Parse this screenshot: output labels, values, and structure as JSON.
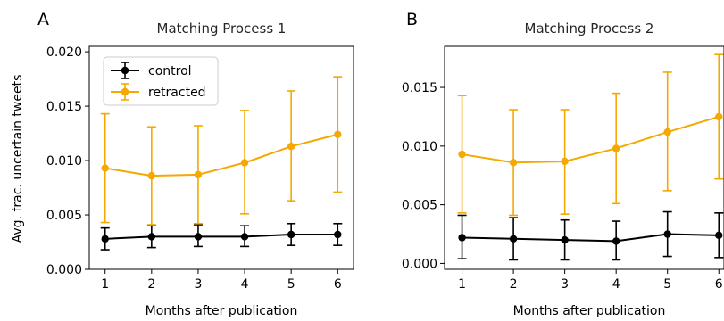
{
  "chart_data": [
    {
      "type": "line",
      "panel_label": "A",
      "title": "Matching Process 1",
      "xlabel": "Months after publication",
      "ylabel": "Avg. frac. uncertain tweets",
      "x": [
        1,
        2,
        3,
        4,
        5,
        6
      ],
      "xticks": [
        "1",
        "2",
        "3",
        "4",
        "5",
        "6"
      ],
      "ylim": [
        0,
        0.0205
      ],
      "yticks": [
        0.0,
        0.005,
        0.01,
        0.015,
        0.02
      ],
      "ytick_labels": [
        "0.000",
        "0.005",
        "0.010",
        "0.015",
        "0.020"
      ],
      "legend": "upper-left",
      "series": [
        {
          "name": "control",
          "color": "#000000",
          "values": [
            0.0028,
            0.003,
            0.003,
            0.003,
            0.0032,
            0.0032
          ],
          "err_low": [
            0.0018,
            0.002,
            0.0021,
            0.0021,
            0.0022,
            0.0022
          ],
          "err_high": [
            0.0038,
            0.004,
            0.0041,
            0.004,
            0.0042,
            0.0042
          ]
        },
        {
          "name": "retracted",
          "color": "#f5a800",
          "values": [
            0.0093,
            0.0086,
            0.0087,
            0.0098,
            0.0113,
            0.0124
          ],
          "err_low": [
            0.0043,
            0.0041,
            0.0042,
            0.0051,
            0.0063,
            0.0071
          ],
          "err_high": [
            0.0143,
            0.0131,
            0.0132,
            0.0146,
            0.0164,
            0.0177
          ]
        }
      ]
    },
    {
      "type": "line",
      "panel_label": "B",
      "title": "Matching Process 2",
      "xlabel": "Months after publication",
      "ylabel": "",
      "x": [
        1,
        2,
        3,
        4,
        5,
        6
      ],
      "xticks": [
        "1",
        "2",
        "3",
        "4",
        "5",
        "6"
      ],
      "ylim": [
        -0.0005,
        0.0185
      ],
      "yticks": [
        0.0,
        0.005,
        0.01,
        0.015
      ],
      "ytick_labels": [
        "0.000",
        "0.005",
        "0.010",
        "0.015"
      ],
      "legend": "",
      "series": [
        {
          "name": "control",
          "color": "#000000",
          "values": [
            0.0022,
            0.0021,
            0.002,
            0.0019,
            0.0025,
            0.0024
          ],
          "err_low": [
            0.0004,
            0.0003,
            0.0003,
            0.0003,
            0.0006,
            0.0005
          ],
          "err_high": [
            0.0041,
            0.0039,
            0.0037,
            0.0036,
            0.0044,
            0.0043
          ]
        },
        {
          "name": "retracted",
          "color": "#f5a800",
          "values": [
            0.0093,
            0.0086,
            0.0087,
            0.0098,
            0.0112,
            0.0125
          ],
          "err_low": [
            0.0043,
            0.0041,
            0.0042,
            0.0051,
            0.0062,
            0.0072
          ],
          "err_high": [
            0.0143,
            0.0131,
            0.0131,
            0.0145,
            0.0163,
            0.0178
          ]
        }
      ]
    }
  ]
}
